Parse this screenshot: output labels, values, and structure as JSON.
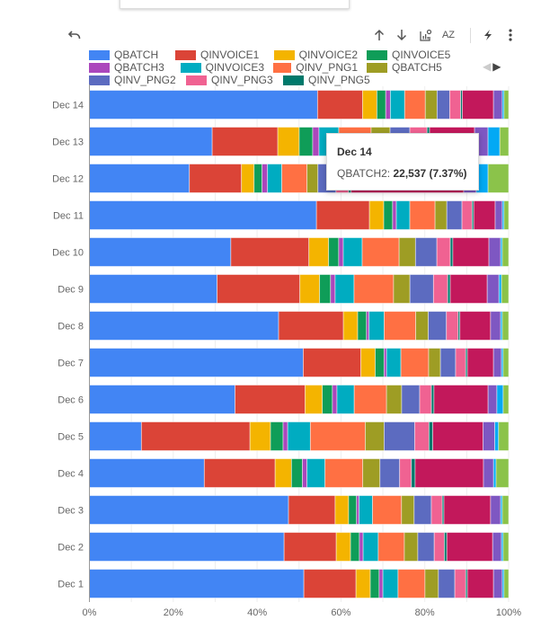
{
  "toolbar": {
    "undo": "undo-icon",
    "sort_asc": "arrow-up-icon",
    "sort_desc": "arrow-down-icon",
    "chart_options": "chart-settings-icon",
    "sort_az": "sort-az-icon",
    "quick_action": "lightning-icon",
    "more": "more-vert-icon",
    "sort_az_label": "AZ"
  },
  "legend": {
    "items": [
      {
        "name": "QBATCH",
        "color": "#4285F4"
      },
      {
        "name": "QINVOICE1",
        "color": "#DB4437"
      },
      {
        "name": "QINVOICE2",
        "color": "#F4B400"
      },
      {
        "name": "QINVOICE5",
        "color": "#0F9D58"
      },
      {
        "name": "QBATCH3",
        "color": "#AB47BC"
      },
      {
        "name": "QINVOICE3",
        "color": "#00ACC1"
      },
      {
        "name": "QINV_PNG1",
        "color": "#FF7043"
      },
      {
        "name": "QBATCH5",
        "color": "#9E9D24"
      },
      {
        "name": "QINV_PNG2",
        "color": "#5C6BC0"
      },
      {
        "name": "QINV_PNG3",
        "color": "#F06292"
      },
      {
        "name": "QINV_PNG5",
        "color": "#00796B"
      }
    ],
    "prev": "◀",
    "next": "▶"
  },
  "tooltip": {
    "title": "Dec 14",
    "series": "QBATCH2: ",
    "value": "22,537 (7.37%)"
  },
  "chart_data": {
    "type": "bar",
    "orientation": "horizontal",
    "stacked": "percent",
    "title": "",
    "xlabel": "",
    "ylabel": "",
    "xlim": [
      0,
      100
    ],
    "x_ticks": [
      "0%",
      "20%",
      "40%",
      "60%",
      "80%",
      "100%"
    ],
    "grid": true,
    "legend_position": "top",
    "categories": [
      "Dec 14",
      "Dec 13",
      "Dec 12",
      "Dec 11",
      "Dec 10",
      "Dec 9",
      "Dec 8",
      "Dec 7",
      "Dec 6",
      "Dec 5",
      "Dec 4",
      "Dec 3",
      "Dec 2",
      "Dec 1"
    ],
    "series": [
      {
        "name": "QBATCH",
        "color": "#4285F4",
        "values": [
          54.2,
          29.2,
          23.8,
          54.0,
          33.7,
          30.4,
          45.0,
          50.8,
          34.7,
          12.4,
          27.4,
          47.4,
          46.3,
          51.0
        ]
      },
      {
        "name": "QINVOICE1",
        "color": "#DB4437",
        "values": [
          10.7,
          15.6,
          12.4,
          12.6,
          18.6,
          19.7,
          15.4,
          13.7,
          16.7,
          25.9,
          16.9,
          11.1,
          12.4,
          12.4
        ]
      },
      {
        "name": "QINVOICE2",
        "color": "#F4B400",
        "values": [
          3.4,
          5.1,
          3.0,
          3.4,
          4.7,
          4.7,
          3.4,
          3.4,
          4.1,
          4.9,
          3.9,
          3.2,
          3.4,
          3.4
        ]
      },
      {
        "name": "QINVOICE5",
        "color": "#0F9D58",
        "values": [
          2.1,
          3.2,
          1.9,
          2.1,
          2.4,
          2.6,
          2.1,
          2.1,
          2.4,
          3.0,
          2.6,
          1.9,
          2.1,
          2.1
        ]
      },
      {
        "name": "QBATCH3",
        "color": "#AB47BC",
        "values": [
          1.1,
          1.5,
          1.3,
          0.9,
          1.1,
          1.1,
          0.6,
          0.6,
          1.1,
          1.1,
          1.1,
          0.6,
          0.9,
          0.9
        ]
      },
      {
        "name": "QINVOICE3",
        "color": "#00ACC1",
        "values": [
          3.4,
          4.7,
          3.4,
          3.2,
          4.5,
          4.5,
          3.6,
          3.4,
          4.1,
          5.4,
          4.3,
          3.2,
          3.6,
          3.6
        ]
      },
      {
        "name": "QINV_PNG1",
        "color": "#FF7043",
        "values": [
          4.9,
          7.7,
          6.0,
          6.0,
          8.8,
          9.4,
          7.5,
          6.6,
          7.7,
          13.1,
          9.0,
          6.9,
          6.2,
          6.4
        ]
      },
      {
        "name": "QBATCH5",
        "color": "#9E9D24",
        "values": [
          2.8,
          4.5,
          2.6,
          2.8,
          3.9,
          3.9,
          3.0,
          2.8,
          3.6,
          4.5,
          4.1,
          3.0,
          3.2,
          3.2
        ]
      },
      {
        "name": "QINV_PNG2",
        "color": "#5C6BC0",
        "values": [
          3.0,
          4.7,
          4.3,
          3.6,
          5.1,
          5.6,
          4.3,
          3.6,
          4.3,
          7.3,
          4.7,
          4.1,
          3.9,
          3.9
        ]
      },
      {
        "name": "QINV_PNG3",
        "color": "#F06292",
        "values": [
          2.6,
          4.1,
          3.0,
          2.4,
          3.2,
          3.4,
          2.8,
          2.4,
          2.8,
          3.4,
          2.8,
          2.6,
          2.4,
          2.6
        ]
      },
      {
        "name": "QINV_PNG5",
        "color": "#00796B",
        "values": [
          0.4,
          0.6,
          0.6,
          0.4,
          0.6,
          0.6,
          0.4,
          0.4,
          0.6,
          0.9,
          0.9,
          0.4,
          0.6,
          0.4
        ]
      },
      {
        "name": "QBATCH2",
        "color": "#C2185B",
        "values": [
          7.4,
          10.7,
          26.8,
          5.1,
          8.6,
          8.8,
          7.3,
          6.2,
          12.9,
          12.0,
          16.3,
          11.1,
          10.9,
          6.2
        ]
      },
      {
        "name": "",
        "color": "#7E57C2",
        "values": [
          2.1,
          3.2,
          3.0,
          1.7,
          2.8,
          2.8,
          2.4,
          1.9,
          2.1,
          2.8,
          2.4,
          2.4,
          2.1,
          2.1
        ]
      },
      {
        "name": "",
        "color": "#03A9F4",
        "values": [
          0.4,
          2.8,
          2.8,
          0.4,
          0.4,
          0.6,
          0.4,
          0.4,
          1.5,
          0.9,
          0.6,
          0.4,
          0.4,
          0.4
        ]
      },
      {
        "name": "",
        "color": "#8BC34A",
        "values": [
          1.1,
          2.1,
          4.9,
          1.1,
          1.5,
          1.7,
          1.5,
          1.3,
          1.3,
          2.4,
          3.0,
          1.5,
          1.3,
          1.1
        ]
      }
    ],
    "tooltip": {
      "category": "Dec 14",
      "series": "QBATCH2",
      "value": 22537,
      "percent": 7.37
    }
  }
}
